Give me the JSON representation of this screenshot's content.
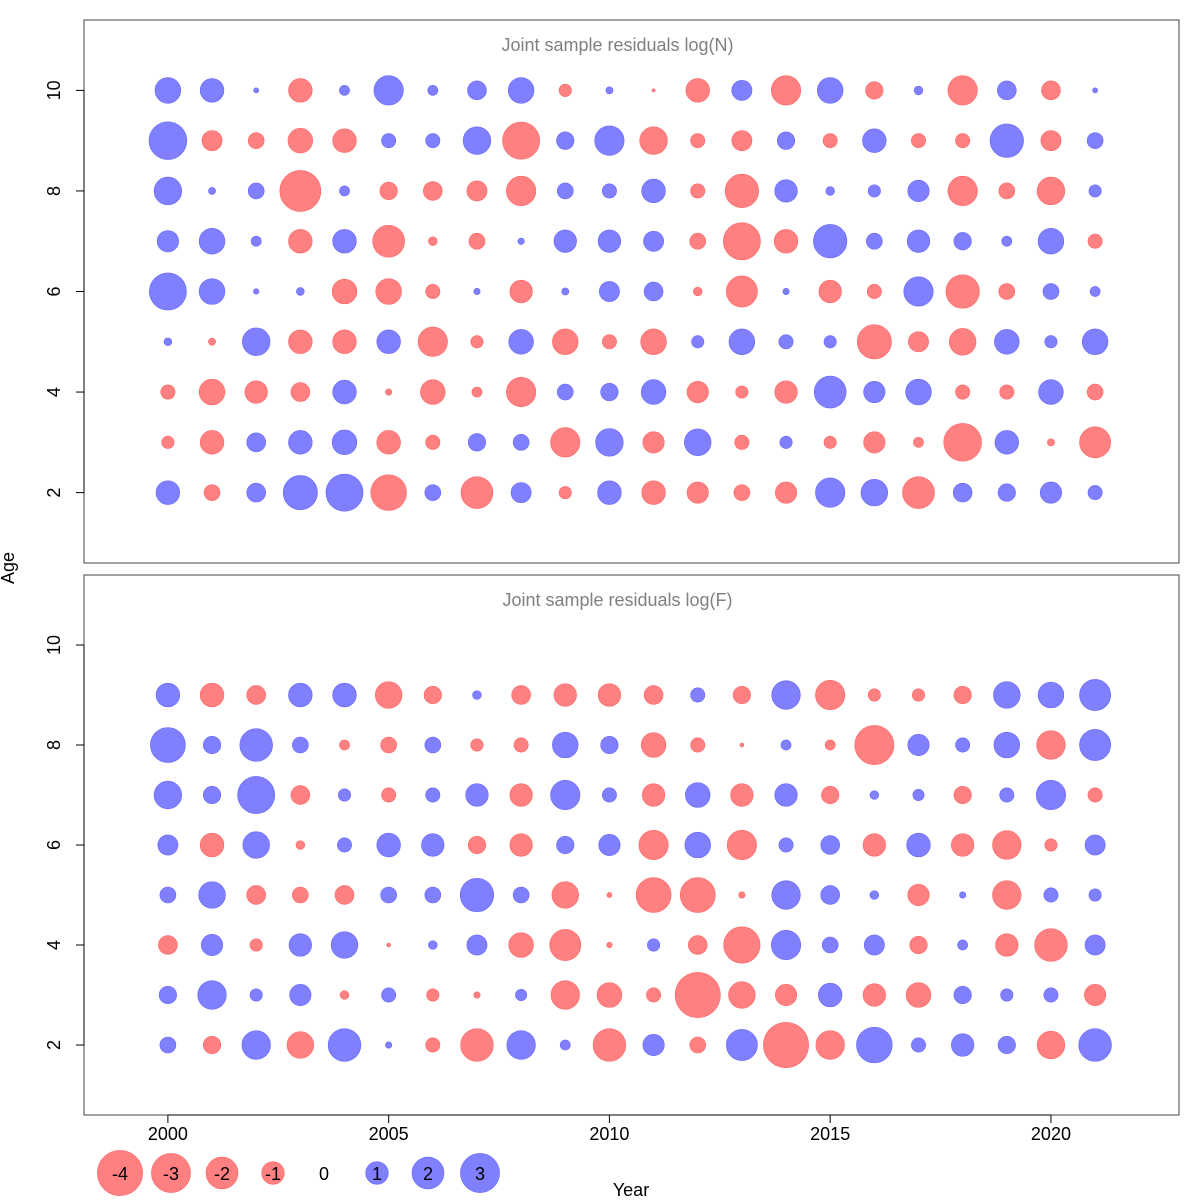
{
  "chart_data": [
    {
      "type": "scatter",
      "subtype": "bubble",
      "title": "Joint sample residuals log(N)",
      "xlim": [
        1998.1,
        2022.9
      ],
      "ylim": [
        0.6,
        11.4
      ],
      "yticks": [
        2,
        4,
        6,
        8,
        10
      ],
      "years": [
        2000,
        2001,
        2002,
        2003,
        2004,
        2005,
        2006,
        2007,
        2008,
        2009,
        2010,
        2011,
        2012,
        2013,
        2014,
        2015,
        2016,
        2017,
        2018,
        2019,
        2020,
        2021
      ],
      "ages": [
        10,
        9,
        8,
        7,
        6,
        5,
        4,
        3,
        2
      ],
      "residuals": [
        [
          1.3,
          1.1,
          0.05,
          -1.1,
          0.2,
          1.7,
          0.2,
          0.7,
          1.3,
          -0.3,
          0.1,
          -0.02,
          -1.1,
          0.8,
          -1.7,
          1.3,
          -0.6,
          0.15,
          -1.7,
          0.7,
          -0.7,
          0.05
        ],
        [
          2.8,
          -0.8,
          -0.5,
          -1.2,
          -1.1,
          0.4,
          0.4,
          1.5,
          -2.7,
          0.6,
          1.7,
          -1.5,
          -0.4,
          -0.8,
          0.6,
          -0.4,
          1.1,
          -0.4,
          -0.4,
          2.2,
          -0.8,
          0.5
        ],
        [
          1.5,
          0.1,
          0.5,
          -3.3,
          0.2,
          -0.6,
          -0.7,
          -0.8,
          -1.7,
          0.5,
          0.4,
          1.1,
          -0.4,
          -2.2,
          1.0,
          0.15,
          0.3,
          0.9,
          -1.7,
          -0.5,
          -1.5,
          0.3
        ],
        [
          0.9,
          1.3,
          0.2,
          -1.1,
          1.1,
          -2.0,
          -0.15,
          -0.5,
          0.08,
          1.0,
          1.0,
          0.8,
          -0.5,
          -2.7,
          -1.1,
          2.2,
          0.5,
          1.0,
          0.6,
          0.2,
          1.3,
          -0.4
        ],
        [
          2.7,
          1.3,
          0.06,
          0.12,
          -1.2,
          -1.3,
          -0.4,
          0.08,
          -1.0,
          0.1,
          0.8,
          0.7,
          -0.15,
          -1.9,
          0.08,
          -1.0,
          -0.4,
          1.7,
          -2.2,
          -0.5,
          0.5,
          0.2
        ],
        [
          0.12,
          -0.1,
          1.5,
          -1.1,
          -1.1,
          1.1,
          -1.7,
          -0.3,
          1.2,
          -1.3,
          -0.4,
          -1.3,
          0.3,
          1.3,
          0.4,
          0.3,
          -2.3,
          -0.8,
          -1.4,
          1.2,
          0.3,
          1.3
        ],
        [
          -0.4,
          -1.3,
          -1.0,
          -0.7,
          1.1,
          -0.08,
          -1.2,
          -0.2,
          -1.7,
          0.5,
          0.6,
          1.2,
          -0.9,
          -0.3,
          -1.0,
          2.0,
          0.9,
          1.3,
          -0.4,
          -0.4,
          1.2,
          -0.5
        ],
        [
          -0.3,
          -1.1,
          0.7,
          1.1,
          1.2,
          -1.1,
          -0.4,
          0.6,
          0.5,
          -1.7,
          1.5,
          -0.9,
          1.4,
          -0.4,
          0.3,
          -0.3,
          -0.9,
          -0.2,
          -2.8,
          1.1,
          -0.1,
          -1.9
        ],
        [
          1.1,
          -0.5,
          0.7,
          2.3,
          2.7,
          -2.5,
          0.5,
          -2.0,
          0.8,
          -0.3,
          1.1,
          -1.1,
          -0.9,
          -0.5,
          -0.9,
          1.7,
          1.4,
          -2.0,
          0.7,
          0.6,
          0.9,
          0.4
        ]
      ]
    },
    {
      "type": "scatter",
      "subtype": "bubble",
      "title": "Joint sample residuals log(F)",
      "xlim": [
        1998.1,
        2022.9
      ],
      "ylim": [
        0.6,
        11.4
      ],
      "yticks": [
        2,
        4,
        6,
        8,
        10
      ],
      "xticks": [
        2000,
        2005,
        2010,
        2015,
        2020
      ],
      "years": [
        2000,
        2001,
        2002,
        2003,
        2004,
        2005,
        2006,
        2007,
        2008,
        2009,
        2010,
        2011,
        2012,
        2013,
        2014,
        2015,
        2016,
        2017,
        2018,
        2019,
        2020,
        2021
      ],
      "ages": [
        9,
        8,
        7,
        6,
        5,
        4,
        3,
        2
      ],
      "residuals": [
        [
          1.1,
          -1.1,
          -0.7,
          1.1,
          1.1,
          -1.4,
          -0.6,
          0.15,
          -0.7,
          -1.0,
          -1.0,
          -0.7,
          0.4,
          -0.6,
          1.6,
          -1.7,
          -0.3,
          -0.3,
          -0.6,
          1.4,
          1.3,
          1.9
        ],
        [
          2.4,
          0.6,
          2.1,
          0.5,
          -0.2,
          -0.5,
          0.5,
          -0.3,
          -0.4,
          1.3,
          0.6,
          -1.2,
          -0.4,
          -0.03,
          0.2,
          -0.2,
          -3.0,
          0.9,
          0.4,
          1.3,
          -1.6,
          1.9
        ],
        [
          1.5,
          0.6,
          2.7,
          -0.7,
          0.3,
          -0.4,
          0.4,
          1.0,
          -1.0,
          1.7,
          0.4,
          -1.0,
          1.2,
          -1.0,
          1.0,
          -0.6,
          0.15,
          0.25,
          -0.6,
          0.4,
          1.7,
          -0.4
        ],
        [
          0.8,
          -1.1,
          1.4,
          -0.15,
          0.4,
          1.1,
          1.0,
          -0.6,
          -1.0,
          0.6,
          0.9,
          -1.7,
          1.3,
          -1.7,
          0.4,
          0.7,
          -1.0,
          1.1,
          -1.0,
          -1.6,
          -0.3,
          0.8
        ],
        [
          0.5,
          1.4,
          -0.7,
          -0.5,
          -0.7,
          0.5,
          0.5,
          2.2,
          0.5,
          -1.4,
          -0.05,
          -2.4,
          -2.4,
          -0.08,
          1.6,
          0.7,
          0.15,
          -0.9,
          0.08,
          -1.6,
          0.4,
          0.3
        ],
        [
          -0.7,
          0.9,
          -0.3,
          1.0,
          1.4,
          -0.03,
          0.15,
          0.8,
          -1.2,
          -1.9,
          -0.06,
          0.3,
          -0.7,
          -2.6,
          1.7,
          0.5,
          0.8,
          -0.6,
          0.2,
          -1.0,
          -2.1,
          0.8
        ],
        [
          0.6,
          1.6,
          0.3,
          0.9,
          -0.15,
          0.4,
          -0.3,
          -0.08,
          0.25,
          -1.6,
          -1.2,
          -0.4,
          -4.0,
          -1.4,
          -0.9,
          1.1,
          -1.0,
          -1.2,
          0.6,
          0.3,
          0.4,
          -0.9
        ],
        [
          0.5,
          -0.6,
          1.6,
          -1.4,
          2.1,
          0.08,
          -0.4,
          -2.1,
          1.6,
          0.2,
          -2.1,
          0.9,
          -0.5,
          1.9,
          -4.0,
          -1.6,
          2.5,
          0.4,
          1.0,
          0.6,
          -1.5,
          2.1
        ]
      ]
    }
  ],
  "shared": {
    "ylabel": "Age",
    "xlabel": "Year",
    "legend": {
      "position": "bottom-left",
      "labels": [
        "-4",
        "-3",
        "-2",
        "-1",
        "0",
        "1",
        "2",
        "3"
      ],
      "values": [
        -4,
        -3,
        -2,
        -1,
        0,
        1,
        2,
        3
      ]
    },
    "colors": {
      "negative": "#FF8080",
      "negative_stroke": "#FF6666",
      "negative_text": "#8B0000",
      "positive": "#8080FF",
      "positive_stroke": "#6666FF",
      "positive_text": "#00008B",
      "title": "#808080"
    }
  }
}
